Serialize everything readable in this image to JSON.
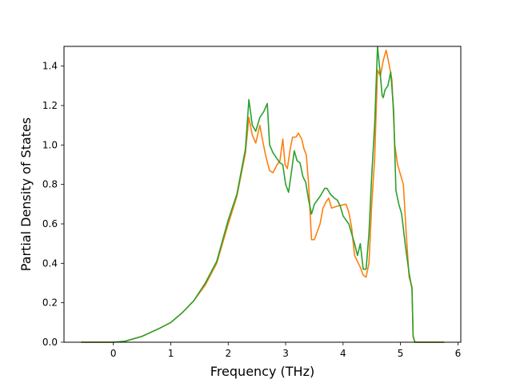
{
  "chart_data": {
    "type": "line",
    "title": "",
    "xlabel": "Frequency (THz)",
    "ylabel": "Partial Density of States",
    "xlim": [
      -0.86,
      6.05
    ],
    "ylim": [
      0.0,
      1.5
    ],
    "xticks": [
      0,
      1,
      2,
      3,
      4,
      5,
      6
    ],
    "yticks": [
      0.0,
      0.2,
      0.4,
      0.6,
      0.8,
      1.0,
      1.2,
      1.4
    ],
    "xtick_labels": [
      "0",
      "1",
      "2",
      "3",
      "4",
      "5",
      "6"
    ],
    "ytick_labels": [
      "0.0",
      "0.2",
      "0.4",
      "0.6",
      "0.8",
      "1.0",
      "1.2",
      "1.4"
    ],
    "grid": false,
    "legend": "none",
    "series": [
      {
        "color": "#ff7f0e",
        "x": [
          -0.55,
          0.0,
          0.2,
          0.5,
          0.8,
          1.0,
          1.2,
          1.4,
          1.6,
          1.8,
          2.0,
          2.15,
          2.3,
          2.36,
          2.42,
          2.48,
          2.55,
          2.6,
          2.65,
          2.72,
          2.78,
          2.85,
          2.9,
          2.95,
          2.99,
          3.03,
          3.08,
          3.12,
          3.18,
          3.22,
          3.28,
          3.32,
          3.36,
          3.4,
          3.45,
          3.5,
          3.55,
          3.6,
          3.65,
          3.7,
          3.75,
          3.8,
          3.9,
          4.05,
          4.1,
          4.15,
          4.2,
          4.3,
          4.35,
          4.4,
          4.45,
          4.5,
          4.55,
          4.6,
          4.65,
          4.7,
          4.75,
          4.8,
          4.85,
          4.9,
          4.95,
          5.0,
          5.05,
          5.1,
          5.15,
          5.2,
          5.22,
          5.25,
          5.5,
          5.75
        ],
        "values": [
          0.0,
          0.0,
          0.005,
          0.03,
          0.07,
          0.1,
          0.15,
          0.21,
          0.29,
          0.4,
          0.6,
          0.74,
          0.96,
          1.14,
          1.05,
          1.01,
          1.1,
          1.02,
          0.95,
          0.87,
          0.86,
          0.9,
          0.92,
          1.03,
          0.9,
          0.88,
          0.98,
          1.04,
          1.04,
          1.06,
          1.03,
          0.98,
          0.95,
          0.8,
          0.52,
          0.52,
          0.56,
          0.6,
          0.68,
          0.71,
          0.73,
          0.68,
          0.69,
          0.7,
          0.66,
          0.58,
          0.44,
          0.38,
          0.34,
          0.33,
          0.4,
          0.7,
          0.93,
          1.38,
          1.35,
          1.43,
          1.48,
          1.41,
          1.33,
          1.0,
          0.9,
          0.85,
          0.8,
          0.55,
          0.33,
          0.28,
          0.03,
          0.0,
          0.0,
          0.0
        ]
      },
      {
        "color": "#2ca02c",
        "x": [
          -0.55,
          0.0,
          0.2,
          0.5,
          0.8,
          1.0,
          1.2,
          1.4,
          1.6,
          1.8,
          2.0,
          2.15,
          2.3,
          2.36,
          2.42,
          2.48,
          2.55,
          2.62,
          2.68,
          2.72,
          2.78,
          2.85,
          2.9,
          2.95,
          3.0,
          3.05,
          3.1,
          3.15,
          3.2,
          3.25,
          3.3,
          3.35,
          3.4,
          3.45,
          3.5,
          3.6,
          3.68,
          3.72,
          3.78,
          3.85,
          3.9,
          3.95,
          4.0,
          4.05,
          4.1,
          4.15,
          4.2,
          4.25,
          4.3,
          4.35,
          4.4,
          4.45,
          4.5,
          4.55,
          4.6,
          4.65,
          4.68,
          4.7,
          4.73,
          4.78,
          4.83,
          4.88,
          4.92,
          4.97,
          5.02,
          5.08,
          5.15,
          5.2,
          5.22,
          5.25,
          5.5,
          5.75
        ],
        "values": [
          0.0,
          0.0,
          0.005,
          0.03,
          0.07,
          0.1,
          0.15,
          0.21,
          0.3,
          0.41,
          0.62,
          0.75,
          0.98,
          1.23,
          1.1,
          1.07,
          1.14,
          1.17,
          1.21,
          1.0,
          0.96,
          0.93,
          0.91,
          0.9,
          0.8,
          0.76,
          0.86,
          0.97,
          0.92,
          0.91,
          0.84,
          0.81,
          0.72,
          0.65,
          0.7,
          0.74,
          0.78,
          0.78,
          0.75,
          0.73,
          0.72,
          0.69,
          0.64,
          0.62,
          0.6,
          0.55,
          0.5,
          0.44,
          0.5,
          0.37,
          0.37,
          0.55,
          0.85,
          1.1,
          1.5,
          1.35,
          1.25,
          1.24,
          1.28,
          1.3,
          1.37,
          1.18,
          0.77,
          0.7,
          0.65,
          0.5,
          0.35,
          0.27,
          0.03,
          0.0,
          0.0,
          0.0
        ]
      }
    ]
  }
}
